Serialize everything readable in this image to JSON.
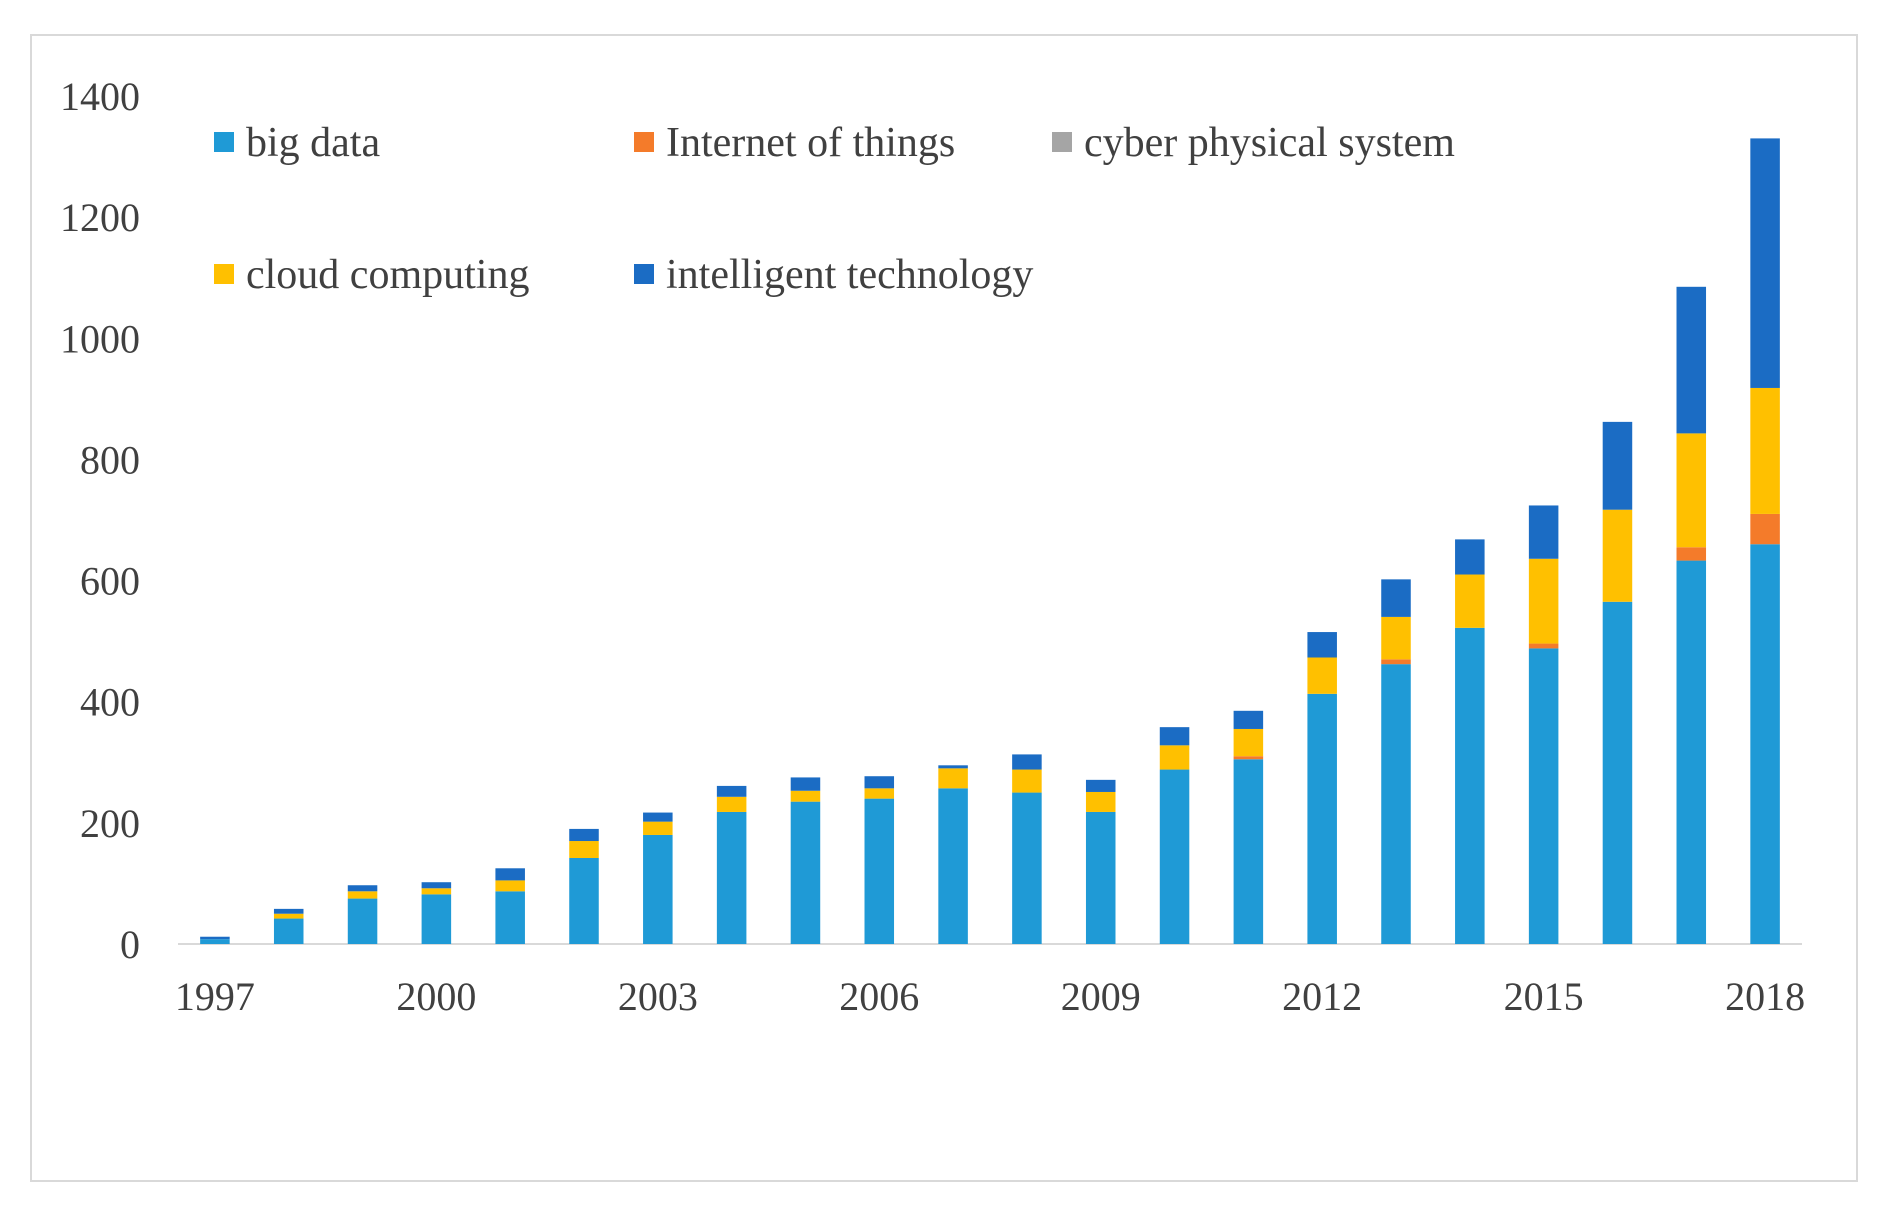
{
  "chart_data": {
    "type": "bar",
    "stacked": true,
    "title": "",
    "xlabel": "",
    "ylabel": "",
    "ylim": [
      0,
      1400
    ],
    "yticks": [
      0,
      200,
      400,
      600,
      800,
      1000,
      1200,
      1400
    ],
    "xtick_labels": [
      "1997",
      "2000",
      "2003",
      "2006",
      "2009",
      "2012",
      "2015",
      "2018"
    ],
    "legend_position": "top-left, inside plot",
    "categories": [
      "1997",
      "1998",
      "1999",
      "2000",
      "2001",
      "2002",
      "2003",
      "2004",
      "2005",
      "2006",
      "2007",
      "2008",
      "2009",
      "2010",
      "2011",
      "2012",
      "2013",
      "2014",
      "2015",
      "2016",
      "2017",
      "2018"
    ],
    "series": [
      {
        "name": "big data",
        "color": "#1f9ad6",
        "values": [
          8,
          42,
          75,
          82,
          87,
          142,
          180,
          218,
          235,
          240,
          257,
          250,
          218,
          288,
          305,
          413,
          462,
          522,
          488,
          565,
          633,
          660
        ]
      },
      {
        "name": "Internet of things",
        "color": "#f47b2a",
        "values": [
          0,
          0,
          0,
          0,
          0,
          0,
          0,
          0,
          0,
          0,
          0,
          0,
          0,
          0,
          5,
          0,
          8,
          0,
          8,
          0,
          22,
          50
        ]
      },
      {
        "name": "cyber physical system",
        "color": "#a5a5a5",
        "values": [
          0,
          0,
          0,
          0,
          0,
          0,
          0,
          0,
          0,
          0,
          0,
          0,
          0,
          0,
          0,
          0,
          0,
          0,
          0,
          0,
          0,
          0
        ]
      },
      {
        "name": "cloud computing",
        "color": "#ffc000",
        "values": [
          0,
          8,
          12,
          10,
          18,
          28,
          22,
          25,
          18,
          17,
          33,
          38,
          33,
          40,
          45,
          60,
          70,
          88,
          140,
          152,
          188,
          208
        ]
      },
      {
        "name": "intelligent technology",
        "color": "#1b6cc4",
        "values": [
          4,
          8,
          10,
          10,
          20,
          20,
          15,
          18,
          22,
          20,
          5,
          25,
          20,
          30,
          30,
          42,
          62,
          58,
          88,
          145,
          242,
          412
        ]
      }
    ]
  }
}
